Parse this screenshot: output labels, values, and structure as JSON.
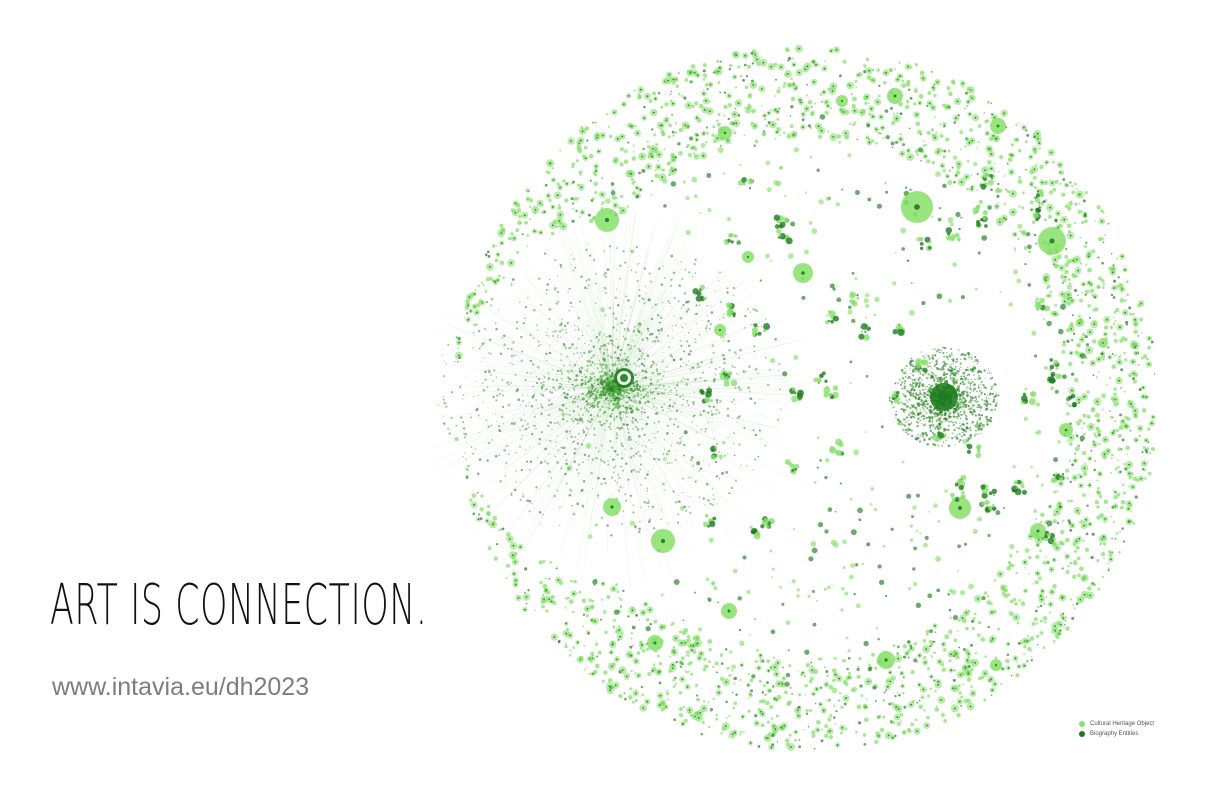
{
  "headline": "ART IS CONNECTION.",
  "url": "www.intavia.eu/dh2023",
  "legend": {
    "items": [
      {
        "label": "Cultural Heritage Object",
        "color": "#86e06a"
      },
      {
        "label": "Biography Entities",
        "color": "#1f7a1f"
      }
    ]
  },
  "colors": {
    "light_green": "#86e06a",
    "dark_green": "#1f7a1f",
    "mid_green": "#4caf3a"
  }
}
